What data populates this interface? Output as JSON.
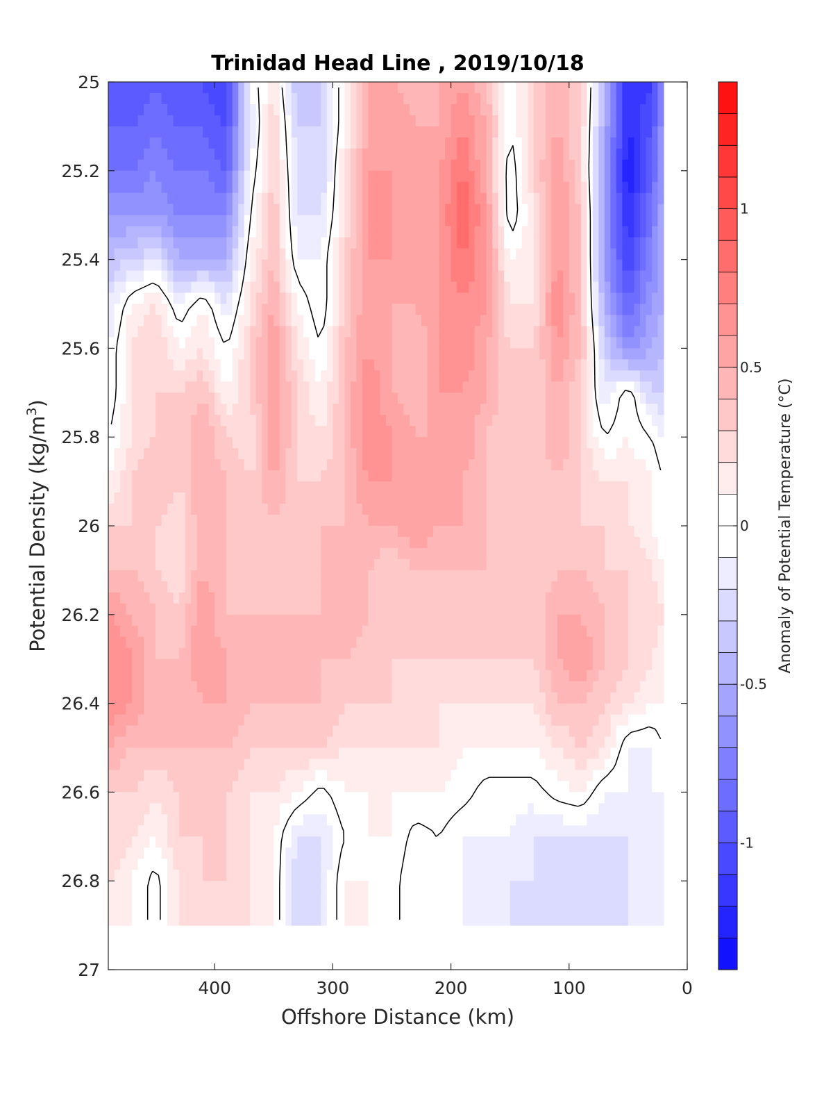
{
  "chart_data": {
    "type": "heatmap",
    "subtype": "filled-contour-section",
    "title": "Trinidad Head Line , 2019/10/18",
    "xlabel": "Offshore Distance (km)",
    "ylabel_main": "Potential Density (kg/m",
    "ylabel_sup": "3",
    "ylabel_close": ")",
    "colorbar_label": "Anomaly of Potential Temperature (°C)",
    "xlim": [
      490,
      0
    ],
    "ylim": [
      25,
      27
    ],
    "y_reversed": true,
    "x_reversed": true,
    "xticks": [
      400,
      300,
      200,
      100,
      0
    ],
    "xtick_labels": [
      "400",
      "300",
      "200",
      "100",
      "0"
    ],
    "yticks": [
      25,
      25.2,
      25.4,
      25.6,
      25.8,
      26,
      26.2,
      26.4,
      26.6,
      26.8,
      27
    ],
    "ytick_labels": [
      "25",
      "25.2",
      "25.4",
      "25.6",
      "25.8",
      "26",
      "26.2",
      "26.4",
      "26.6",
      "26.8",
      "27"
    ],
    "clim": [
      -1.4,
      1.4
    ],
    "contour_step": 0.1,
    "colorbar_ticks": [
      1,
      0.5,
      0,
      -0.5,
      -1
    ],
    "colorbar_tick_labels": [
      "1",
      "0.5",
      "0",
      "-0.5",
      "-1"
    ],
    "colormap": "blue-white-red",
    "colors": {
      "min": "#0000ff",
      "zero": "#ffffff",
      "max": "#ff0000",
      "zero_contour": "#000000"
    },
    "data_extent": {
      "x": [
        490,
        20
      ],
      "y": [
        25,
        26.9
      ]
    },
    "x": [
      490,
      470,
      450,
      430,
      410,
      390,
      370,
      350,
      330,
      310,
      290,
      270,
      250,
      230,
      210,
      190,
      170,
      150,
      130,
      110,
      90,
      70,
      50,
      30,
      20
    ],
    "y": [
      25.0,
      25.1,
      25.2,
      25.3,
      25.4,
      25.5,
      25.6,
      25.7,
      25.8,
      25.9,
      26.0,
      26.1,
      26.2,
      26.3,
      26.4,
      26.5,
      26.6,
      26.7,
      26.8,
      26.9
    ],
    "z": [
      [
        -1.0,
        -1.0,
        -0.9,
        -1.0,
        -1.0,
        -1.1,
        -0.1,
        0.2,
        -0.4,
        -0.3,
        0.1,
        0.5,
        0.5,
        0.4,
        0.5,
        0.6,
        0.4,
        0.0,
        0.3,
        0.5,
        0.3,
        -0.4,
        -1.2,
        -1.1,
        -0.6
      ],
      [
        -0.9,
        -0.9,
        -0.8,
        -0.9,
        -0.9,
        -1.0,
        -0.2,
        0.3,
        -0.3,
        -0.3,
        0.1,
        0.5,
        0.6,
        0.5,
        0.5,
        0.7,
        0.5,
        0.0,
        0.3,
        0.5,
        0.3,
        -0.5,
        -1.2,
        -1.0,
        -0.6
      ],
      [
        -0.8,
        -0.8,
        -0.7,
        -0.8,
        -0.8,
        -0.9,
        -0.1,
        0.3,
        -0.2,
        -0.3,
        0.2,
        0.6,
        0.6,
        0.5,
        0.6,
        0.8,
        0.5,
        -0.1,
        0.3,
        0.6,
        0.3,
        -0.6,
        -1.3,
        -0.9,
        -0.6
      ],
      [
        -0.6,
        -0.6,
        -0.6,
        -0.7,
        -0.7,
        -0.7,
        0.0,
        0.4,
        -0.2,
        -0.2,
        0.2,
        0.6,
        0.6,
        0.5,
        0.6,
        0.9,
        0.6,
        -0.1,
        0.2,
        0.6,
        0.4,
        -0.6,
        -1.2,
        -0.8,
        -0.5
      ],
      [
        -0.4,
        -0.3,
        -0.2,
        -0.5,
        -0.5,
        -0.5,
        0.1,
        0.4,
        -0.1,
        -0.1,
        0.3,
        0.6,
        0.6,
        0.5,
        0.6,
        0.8,
        0.6,
        0.1,
        0.2,
        0.6,
        0.4,
        -0.6,
        -1.1,
        -0.7,
        -0.5
      ],
      [
        -0.2,
        0.1,
        0.2,
        -0.1,
        0.1,
        -0.2,
        0.2,
        0.5,
        0.1,
        -0.1,
        0.3,
        0.6,
        0.5,
        0.5,
        0.6,
        0.7,
        0.6,
        0.2,
        0.2,
        0.7,
        0.4,
        -0.5,
        -0.9,
        -0.6,
        -0.5
      ],
      [
        -0.1,
        0.2,
        0.3,
        0.1,
        0.2,
        0.0,
        0.3,
        0.6,
        0.2,
        0.0,
        0.4,
        0.6,
        0.5,
        0.4,
        0.6,
        0.7,
        0.5,
        0.3,
        0.3,
        0.6,
        0.4,
        -0.3,
        -0.7,
        -0.5,
        -0.4
      ],
      [
        -0.1,
        0.2,
        0.3,
        0.3,
        0.4,
        0.1,
        0.3,
        0.6,
        0.3,
        0.1,
        0.4,
        0.7,
        0.5,
        0.4,
        0.6,
        0.6,
        0.5,
        0.3,
        0.3,
        0.5,
        0.3,
        -0.2,
        0.1,
        -0.3,
        -0.3
      ],
      [
        0.0,
        0.2,
        0.3,
        0.3,
        0.5,
        0.3,
        0.2,
        0.6,
        0.3,
        0.2,
        0.4,
        0.7,
        0.6,
        0.5,
        0.5,
        0.6,
        0.4,
        0.3,
        0.3,
        0.5,
        0.3,
        0.0,
        0.1,
        0.0,
        -0.1
      ],
      [
        0.1,
        0.3,
        0.4,
        0.3,
        0.5,
        0.4,
        0.3,
        0.5,
        0.3,
        0.3,
        0.4,
        0.6,
        0.6,
        0.6,
        0.5,
        0.5,
        0.4,
        0.3,
        0.3,
        0.4,
        0.3,
        0.2,
        0.2,
        0.1,
        0.0
      ],
      [
        0.3,
        0.3,
        0.3,
        0.2,
        0.5,
        0.4,
        0.3,
        0.4,
        0.3,
        0.4,
        0.4,
        0.5,
        0.5,
        0.6,
        0.5,
        0.5,
        0.4,
        0.3,
        0.3,
        0.3,
        0.3,
        0.3,
        0.2,
        0.1,
        0.0
      ],
      [
        0.4,
        0.4,
        0.3,
        0.2,
        0.5,
        0.4,
        0.3,
        0.4,
        0.3,
        0.4,
        0.4,
        0.4,
        0.3,
        0.4,
        0.4,
        0.4,
        0.4,
        0.3,
        0.3,
        0.4,
        0.4,
        0.3,
        0.3,
        0.2,
        0.1
      ],
      [
        0.6,
        0.5,
        0.4,
        0.3,
        0.6,
        0.4,
        0.4,
        0.4,
        0.4,
        0.4,
        0.5,
        0.4,
        0.3,
        0.3,
        0.3,
        0.3,
        0.3,
        0.3,
        0.3,
        0.5,
        0.5,
        0.4,
        0.3,
        0.3,
        0.2
      ],
      [
        0.7,
        0.6,
        0.4,
        0.4,
        0.6,
        0.5,
        0.4,
        0.4,
        0.4,
        0.4,
        0.4,
        0.3,
        0.3,
        0.3,
        0.3,
        0.3,
        0.3,
        0.3,
        0.3,
        0.5,
        0.6,
        0.4,
        0.3,
        0.2,
        0.1
      ],
      [
        0.7,
        0.6,
        0.4,
        0.4,
        0.5,
        0.5,
        0.4,
        0.4,
        0.4,
        0.4,
        0.3,
        0.3,
        0.3,
        0.2,
        0.2,
        0.2,
        0.2,
        0.2,
        0.2,
        0.4,
        0.4,
        0.3,
        0.2,
        0.1,
        0.1
      ],
      [
        0.5,
        0.4,
        0.4,
        0.4,
        0.4,
        0.4,
        0.3,
        0.3,
        0.3,
        0.3,
        0.2,
        0.2,
        0.2,
        0.2,
        0.2,
        0.1,
        0.1,
        0.1,
        0.1,
        0.2,
        0.3,
        0.2,
        -0.1,
        -0.1,
        0.0
      ],
      [
        0.3,
        0.3,
        0.2,
        0.3,
        0.3,
        0.3,
        0.2,
        0.2,
        0.1,
        -0.05,
        0.1,
        0.1,
        0.1,
        0.1,
        0.1,
        0.05,
        -0.05,
        -0.05,
        -0.05,
        0.05,
        0.1,
        -0.1,
        -0.1,
        -0.1,
        -0.1
      ],
      [
        0.3,
        0.2,
        0.1,
        0.3,
        0.3,
        0.3,
        0.2,
        0.1,
        -0.2,
        -0.2,
        0.0,
        0.1,
        0.1,
        -0.05,
        0.0,
        -0.1,
        -0.1,
        -0.1,
        -0.2,
        -0.2,
        -0.2,
        -0.2,
        -0.2,
        -0.1,
        -0.1
      ],
      [
        0.2,
        0.1,
        -0.05,
        0.2,
        0.3,
        0.3,
        0.2,
        0.1,
        -0.3,
        -0.2,
        0.1,
        0.1,
        0.05,
        -0.1,
        0.0,
        -0.1,
        -0.1,
        -0.2,
        -0.2,
        -0.2,
        -0.3,
        -0.3,
        -0.2,
        -0.1,
        -0.1
      ],
      [
        0.2,
        0.1,
        -0.05,
        0.2,
        0.2,
        0.2,
        0.2,
        0.1,
        -0.3,
        -0.2,
        0.1,
        0.1,
        0.05,
        -0.1,
        0.0,
        -0.1,
        -0.1,
        -0.2,
        -0.2,
        -0.2,
        -0.2,
        -0.2,
        -0.2,
        -0.1,
        -0.1
      ]
    ]
  }
}
